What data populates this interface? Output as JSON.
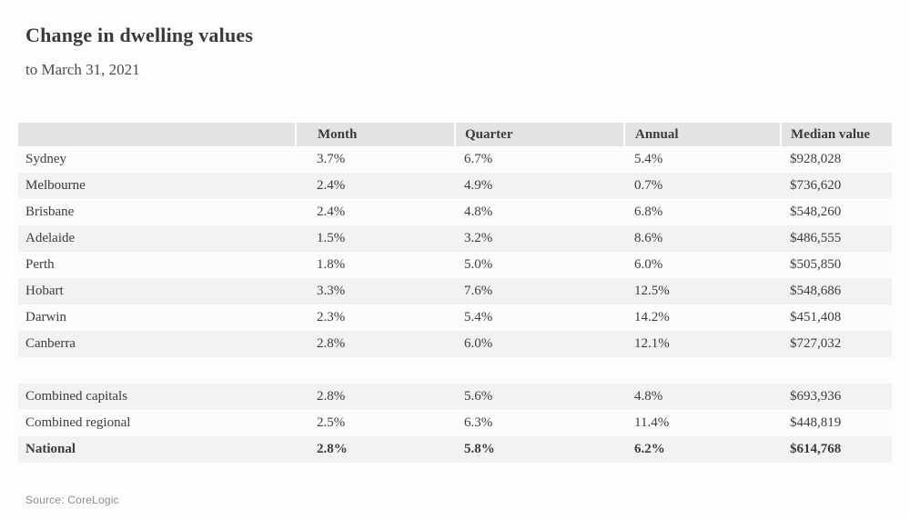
{
  "chart_data": {
    "type": "table",
    "title": "Change in dwelling values",
    "subtitle": "to March 31, 2021",
    "columns": [
      "",
      "Month",
      "Quarter",
      "Annual",
      "Median value"
    ],
    "city_rows": [
      {
        "label": "Sydney",
        "values": [
          "3.7%",
          "6.7%",
          "5.4%",
          "$928,028"
        ]
      },
      {
        "label": "Melbourne",
        "values": [
          "2.4%",
          "4.9%",
          "0.7%",
          "$736,620"
        ]
      },
      {
        "label": "Brisbane",
        "values": [
          "2.4%",
          "4.8%",
          "6.8%",
          "$548,260"
        ]
      },
      {
        "label": "Adelaide",
        "values": [
          "1.5%",
          "3.2%",
          "8.6%",
          "$486,555"
        ]
      },
      {
        "label": "Perth",
        "values": [
          "1.8%",
          "5.0%",
          "6.0%",
          "$505,850"
        ]
      },
      {
        "label": "Hobart",
        "values": [
          "3.3%",
          "7.6%",
          "12.5%",
          "$548,686"
        ]
      },
      {
        "label": "Darwin",
        "values": [
          "2.3%",
          "5.4%",
          "14.2%",
          "$451,408"
        ]
      },
      {
        "label": "Canberra",
        "values": [
          "2.8%",
          "6.0%",
          "12.1%",
          "$727,032"
        ]
      }
    ],
    "summary_rows": [
      {
        "label": "Combined capitals",
        "values": [
          "2.8%",
          "5.6%",
          "4.8%",
          "$693,936"
        ],
        "bold": false
      },
      {
        "label": "Combined regional",
        "values": [
          "2.5%",
          "6.3%",
          "11.4%",
          "$448,819"
        ],
        "bold": false
      },
      {
        "label": "National",
        "values": [
          "2.8%",
          "5.8%",
          "6.2%",
          "$614,768"
        ],
        "bold": true
      }
    ],
    "source": "Source: CoreLogic"
  },
  "colors": {
    "page_bg": "#fdfdfe",
    "header_bg": "#e4e3e4",
    "stripe_bg": "#f2f1f3",
    "row_bg": "#fcfcfd",
    "text": "#3c3b3d",
    "muted_text": "#8e8d90"
  }
}
